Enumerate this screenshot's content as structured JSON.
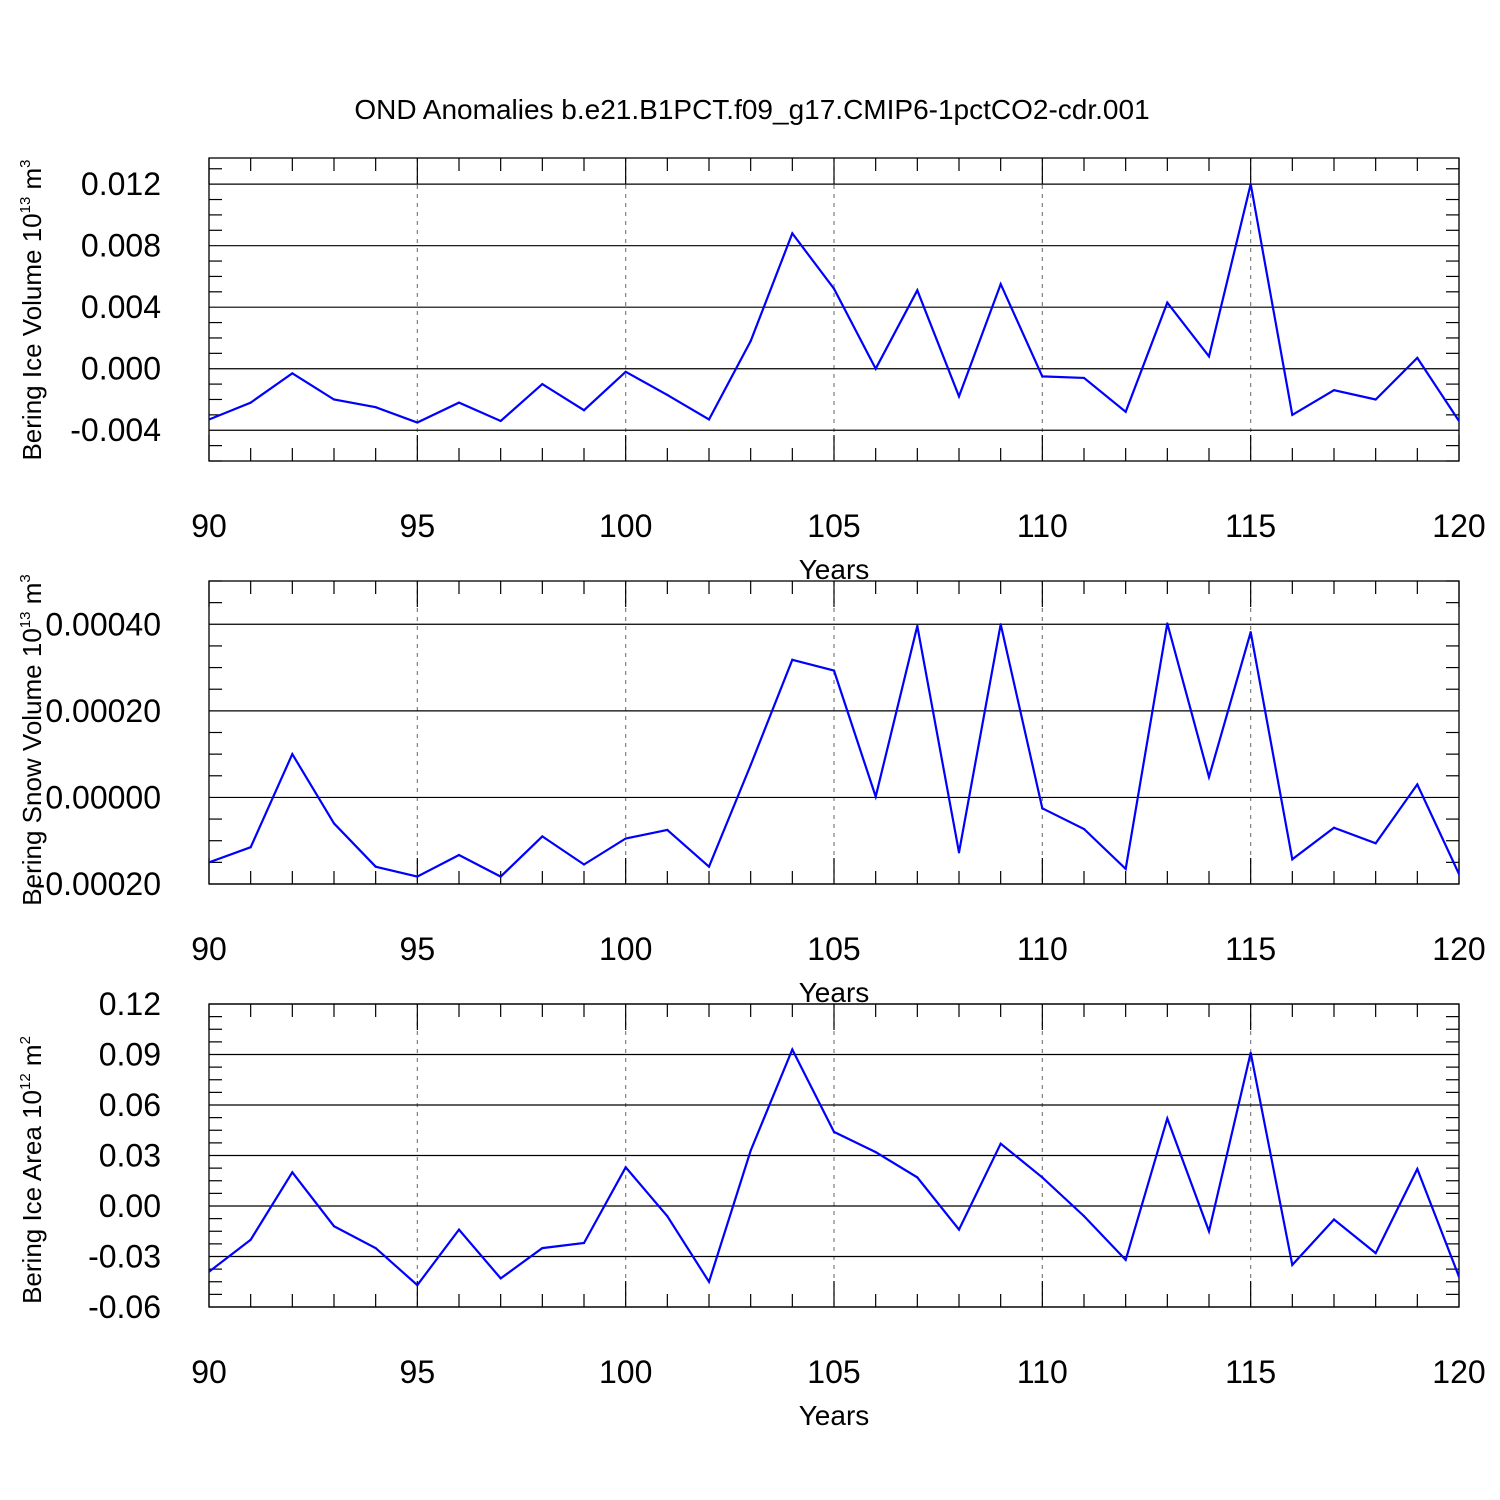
{
  "title": "OND Anomalies b.e21.B1PCT.f09_g17.CMIP6-1pctCO2-cdr.001",
  "line_color": "#0000ff",
  "chart_data": [
    {
      "type": "line",
      "ylabel": {
        "main": "Bering Ice Volume 10",
        "exp": "13",
        "unit": " m",
        "unit_exp": "3"
      },
      "xlabel": "Years",
      "xlim": [
        90,
        120
      ],
      "xticks": [
        90,
        95,
        100,
        105,
        110,
        115,
        120
      ],
      "ylim": [
        -0.006,
        0.0137
      ],
      "yticks": [
        -0.004,
        0.0,
        0.004,
        0.008,
        0.012
      ],
      "yticklabels": [
        "-0.004",
        "0.000",
        "0.004",
        "0.008",
        "0.012"
      ],
      "grid_x": [
        95,
        100,
        105,
        110,
        115
      ],
      "x": [
        90,
        91,
        92,
        93,
        94,
        95,
        96,
        97,
        98,
        99,
        100,
        101,
        102,
        103,
        104,
        105,
        106,
        107,
        108,
        109,
        110,
        111,
        112,
        113,
        114,
        115,
        116,
        117,
        118,
        119,
        120
      ],
      "series": [
        {
          "name": "Bering Ice Volume",
          "values": [
            -0.0033,
            -0.0022,
            -0.0003,
            -0.002,
            -0.0025,
            -0.0035,
            -0.0022,
            -0.0034,
            -0.001,
            -0.0027,
            -0.0002,
            -0.0017,
            -0.0033,
            0.0018,
            0.0088,
            0.0052,
            0.0,
            0.0051,
            -0.0018,
            0.0055,
            -0.0005,
            -0.0006,
            -0.0028,
            0.0043,
            0.0008,
            0.012,
            -0.003,
            -0.0014,
            -0.002,
            0.0007,
            -0.0034
          ]
        }
      ]
    },
    {
      "type": "line",
      "ylabel": {
        "main": "Bering Snow Volume 10",
        "exp": "13",
        "unit": " m",
        "unit_exp": "3"
      },
      "xlabel": "Years",
      "xlim": [
        90,
        120
      ],
      "xticks": [
        90,
        95,
        100,
        105,
        110,
        115,
        120
      ],
      "ylim": [
        -0.0002,
        0.0005
      ],
      "yticks": [
        -0.0002,
        0.0,
        0.0002,
        0.0004
      ],
      "yticklabels": [
        "-0.00020",
        "0.00000",
        "0.00020",
        "0.00040"
      ],
      "grid_x": [
        95,
        100,
        105,
        110,
        115
      ],
      "x": [
        90,
        91,
        92,
        93,
        94,
        95,
        96,
        97,
        98,
        99,
        100,
        101,
        102,
        103,
        104,
        105,
        106,
        107,
        108,
        109,
        110,
        111,
        112,
        113,
        114,
        115,
        116,
        117,
        118,
        119,
        120
      ],
      "series": [
        {
          "name": "Bering Snow Volume",
          "values": [
            -0.00015,
            -0.000115,
            0.0001,
            -6e-05,
            -0.00016,
            -0.000183,
            -0.000133,
            -0.000183,
            -9e-05,
            -0.000155,
            -9.5e-05,
            -7.5e-05,
            -0.00016,
            7.5e-05,
            0.000318,
            0.000293,
            2e-06,
            0.000396,
            -0.000127,
            0.0004,
            -2.5e-05,
            -7.3e-05,
            -0.000165,
            0.000402,
            4.7e-05,
            0.000382,
            -0.000143,
            -7e-05,
            -0.000106,
            3e-05,
            -0.000177
          ]
        }
      ]
    },
    {
      "type": "line",
      "ylabel": {
        "main": "Bering Ice Area 10",
        "exp": "12",
        "unit": " m",
        "unit_exp": "2"
      },
      "xlabel": "Years",
      "xlim": [
        90,
        120
      ],
      "xticks": [
        90,
        95,
        100,
        105,
        110,
        115,
        120
      ],
      "ylim": [
        -0.06,
        0.12
      ],
      "yticks": [
        -0.06,
        -0.03,
        0.0,
        0.03,
        0.06,
        0.09,
        0.12
      ],
      "yticklabels": [
        "-0.06",
        "-0.03",
        "0.00",
        "0.03",
        "0.06",
        "0.09",
        "0.12"
      ],
      "grid_x": [
        95,
        100,
        105,
        110,
        115
      ],
      "x": [
        90,
        91,
        92,
        93,
        94,
        95,
        96,
        97,
        98,
        99,
        100,
        101,
        102,
        103,
        104,
        105,
        106,
        107,
        108,
        109,
        110,
        111,
        112,
        113,
        114,
        115,
        116,
        117,
        118,
        119,
        120
      ],
      "series": [
        {
          "name": "Bering Ice Area",
          "values": [
            -0.039,
            -0.02,
            0.02,
            -0.012,
            -0.025,
            -0.047,
            -0.014,
            -0.043,
            -0.025,
            -0.022,
            0.023,
            -0.006,
            -0.045,
            0.033,
            0.093,
            0.044,
            0.032,
            0.017,
            -0.014,
            0.037,
            0.017,
            -0.006,
            -0.032,
            0.052,
            -0.015,
            0.091,
            -0.035,
            -0.008,
            -0.028,
            0.022,
            -0.042
          ]
        }
      ]
    }
  ]
}
